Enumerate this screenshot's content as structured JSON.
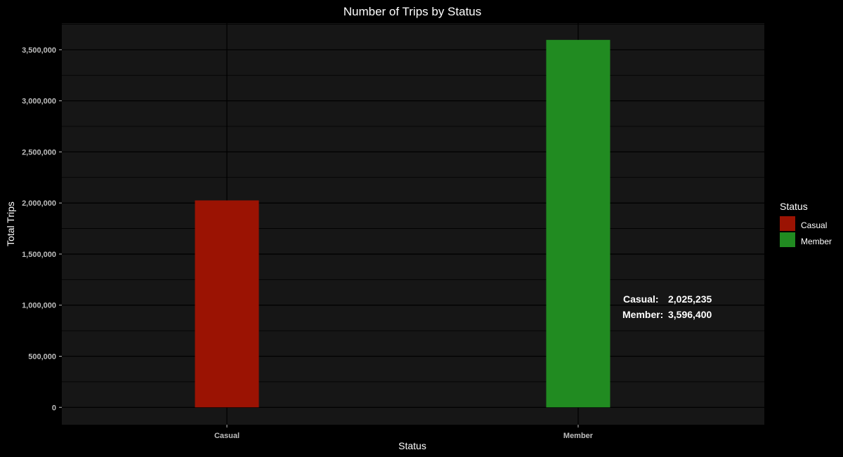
{
  "chart_data": {
    "type": "bar",
    "title": "Number of Trips by Status",
    "xlabel": "Status",
    "ylabel": "Total Trips",
    "categories": [
      "Casual",
      "Member"
    ],
    "values": [
      2025235,
      3596400
    ],
    "colors": [
      "#9b1303",
      "#218b21"
    ],
    "ylim": [
      -170000,
      3760000
    ],
    "yticks": [
      0,
      500000,
      1000000,
      1500000,
      2000000,
      2500000,
      3000000,
      3500000
    ],
    "ytick_labels": [
      "0",
      "500,000",
      "1,000,000",
      "1,500,000",
      "2,000,000",
      "2,500,000",
      "3,000,000",
      "3,500,000"
    ],
    "grid": true,
    "background": "#161616",
    "legend": {
      "title": "Status",
      "position": "right",
      "entries": [
        {
          "label": "Casual",
          "color": "#9b1303"
        },
        {
          "label": "Member",
          "color": "#218b21"
        }
      ]
    },
    "annotations": [
      {
        "label": "Casual:",
        "value": "2,025,235"
      },
      {
        "label": "Member:",
        "value": "3,596,400"
      }
    ]
  }
}
